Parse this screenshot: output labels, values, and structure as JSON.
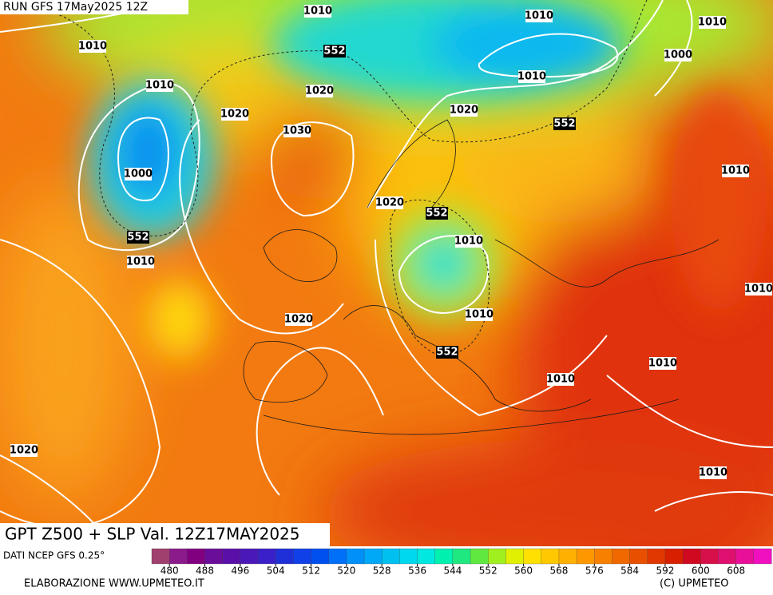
{
  "header": {
    "run": "RUN GFS 17May2025 12Z"
  },
  "map": {
    "title": "GPT Z500 + SLP Val. 12Z17MAY2025",
    "contour_labels": [
      "1010",
      "1010",
      "1010",
      "1010",
      "552",
      "1000",
      "1010",
      "1020",
      "1010",
      "1020",
      "1020",
      "552",
      "1030",
      "1010",
      "1000",
      "1020",
      "552",
      "552",
      "1010",
      "1010",
      "1010",
      "1010",
      "1020",
      "552",
      "1010",
      "1010",
      "1020",
      "1010"
    ]
  },
  "legend": {
    "source": "DATI NCEP GFS 0.25°",
    "lim": [
      476,
      616
    ],
    "ticks": [
      480,
      488,
      496,
      504,
      512,
      520,
      528,
      536,
      544,
      552,
      560,
      568,
      576,
      584,
      592,
      600,
      608
    ],
    "colors": [
      "#a0406e",
      "#8b1a8b",
      "#800080",
      "#6a0d9a",
      "#5a10a8",
      "#4a18b8",
      "#3a20c8",
      "#2030d8",
      "#1040e8",
      "#0050f0",
      "#0070f8",
      "#0090f8",
      "#00a8f8",
      "#00c0f0",
      "#00d8f0",
      "#00e8e0",
      "#00f0b0",
      "#20e880",
      "#60e840",
      "#a0f020",
      "#e0f000",
      "#ffe000",
      "#ffc800",
      "#ffb000",
      "#ff9800",
      "#f88000",
      "#f06800",
      "#e85000",
      "#e03800",
      "#d82000",
      "#d00820",
      "#d8104a",
      "#e01070",
      "#e81098",
      "#f010c0"
    ]
  },
  "footer": {
    "credit": "ELABORAZIONE WWW.UPMETEO.IT",
    "copyright": "(C) UPMETEO"
  }
}
